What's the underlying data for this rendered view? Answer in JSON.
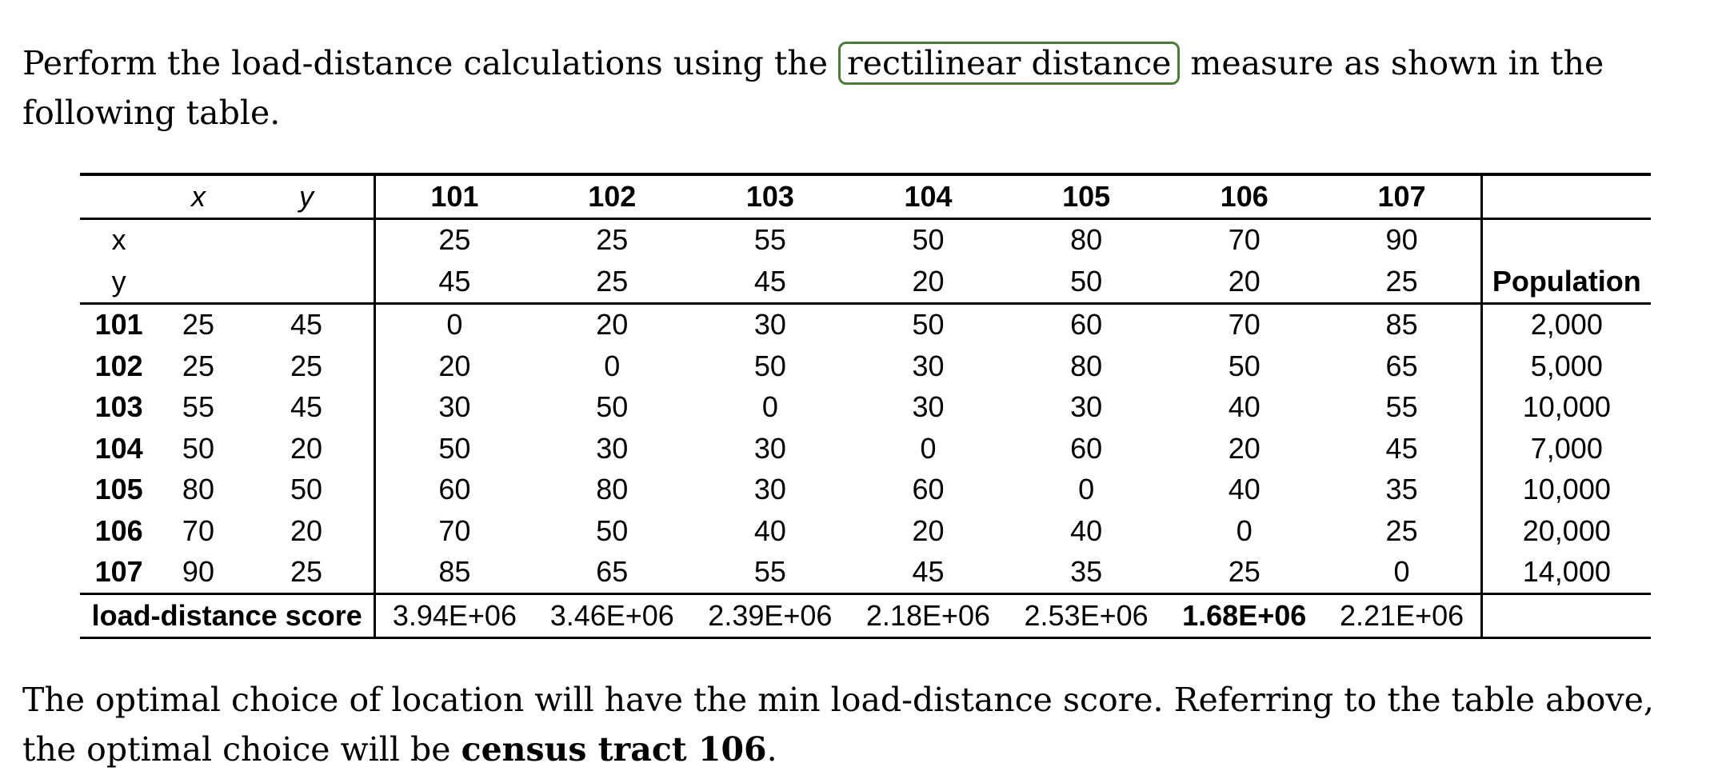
{
  "intro": {
    "before": "Perform the load-distance calculations using the ",
    "highlight": "rectilinear distance",
    "after": " measure as shown in the following table."
  },
  "table": {
    "x_label": "x",
    "y_label": "y",
    "population_label": "Population",
    "columns": [
      "101",
      "102",
      "103",
      "104",
      "105",
      "106",
      "107"
    ],
    "col_x": [
      "25",
      "25",
      "55",
      "50",
      "80",
      "70",
      "90"
    ],
    "col_y": [
      "45",
      "25",
      "45",
      "20",
      "50",
      "20",
      "25"
    ],
    "rows": [
      {
        "tract": "101",
        "x": "25",
        "y": "45",
        "d": [
          "0",
          "20",
          "30",
          "50",
          "60",
          "70",
          "85"
        ],
        "pop": "2,000"
      },
      {
        "tract": "102",
        "x": "25",
        "y": "25",
        "d": [
          "20",
          "0",
          "50",
          "30",
          "80",
          "50",
          "65"
        ],
        "pop": "5,000"
      },
      {
        "tract": "103",
        "x": "55",
        "y": "45",
        "d": [
          "30",
          "50",
          "0",
          "30",
          "30",
          "40",
          "55"
        ],
        "pop": "10,000"
      },
      {
        "tract": "104",
        "x": "50",
        "y": "20",
        "d": [
          "50",
          "30",
          "30",
          "0",
          "60",
          "20",
          "45"
        ],
        "pop": "7,000"
      },
      {
        "tract": "105",
        "x": "80",
        "y": "50",
        "d": [
          "60",
          "80",
          "30",
          "60",
          "0",
          "40",
          "35"
        ],
        "pop": "10,000"
      },
      {
        "tract": "106",
        "x": "70",
        "y": "20",
        "d": [
          "70",
          "50",
          "40",
          "20",
          "40",
          "0",
          "25"
        ],
        "pop": "20,000"
      },
      {
        "tract": "107",
        "x": "90",
        "y": "25",
        "d": [
          "85",
          "65",
          "55",
          "45",
          "35",
          "25",
          "0"
        ],
        "pop": "14,000"
      }
    ],
    "score_label": "load-distance score",
    "scores": [
      "3.94E+06",
      "3.46E+06",
      "2.39E+06",
      "2.18E+06",
      "2.53E+06",
      "1.68E+06",
      "2.21E+06"
    ],
    "best_score_index": 5
  },
  "conclusion": {
    "before": "The optimal choice of location will have the min load-distance score. Referring to the table above, the optimal choice will be ",
    "answer": "census tract 106",
    "after": "."
  }
}
